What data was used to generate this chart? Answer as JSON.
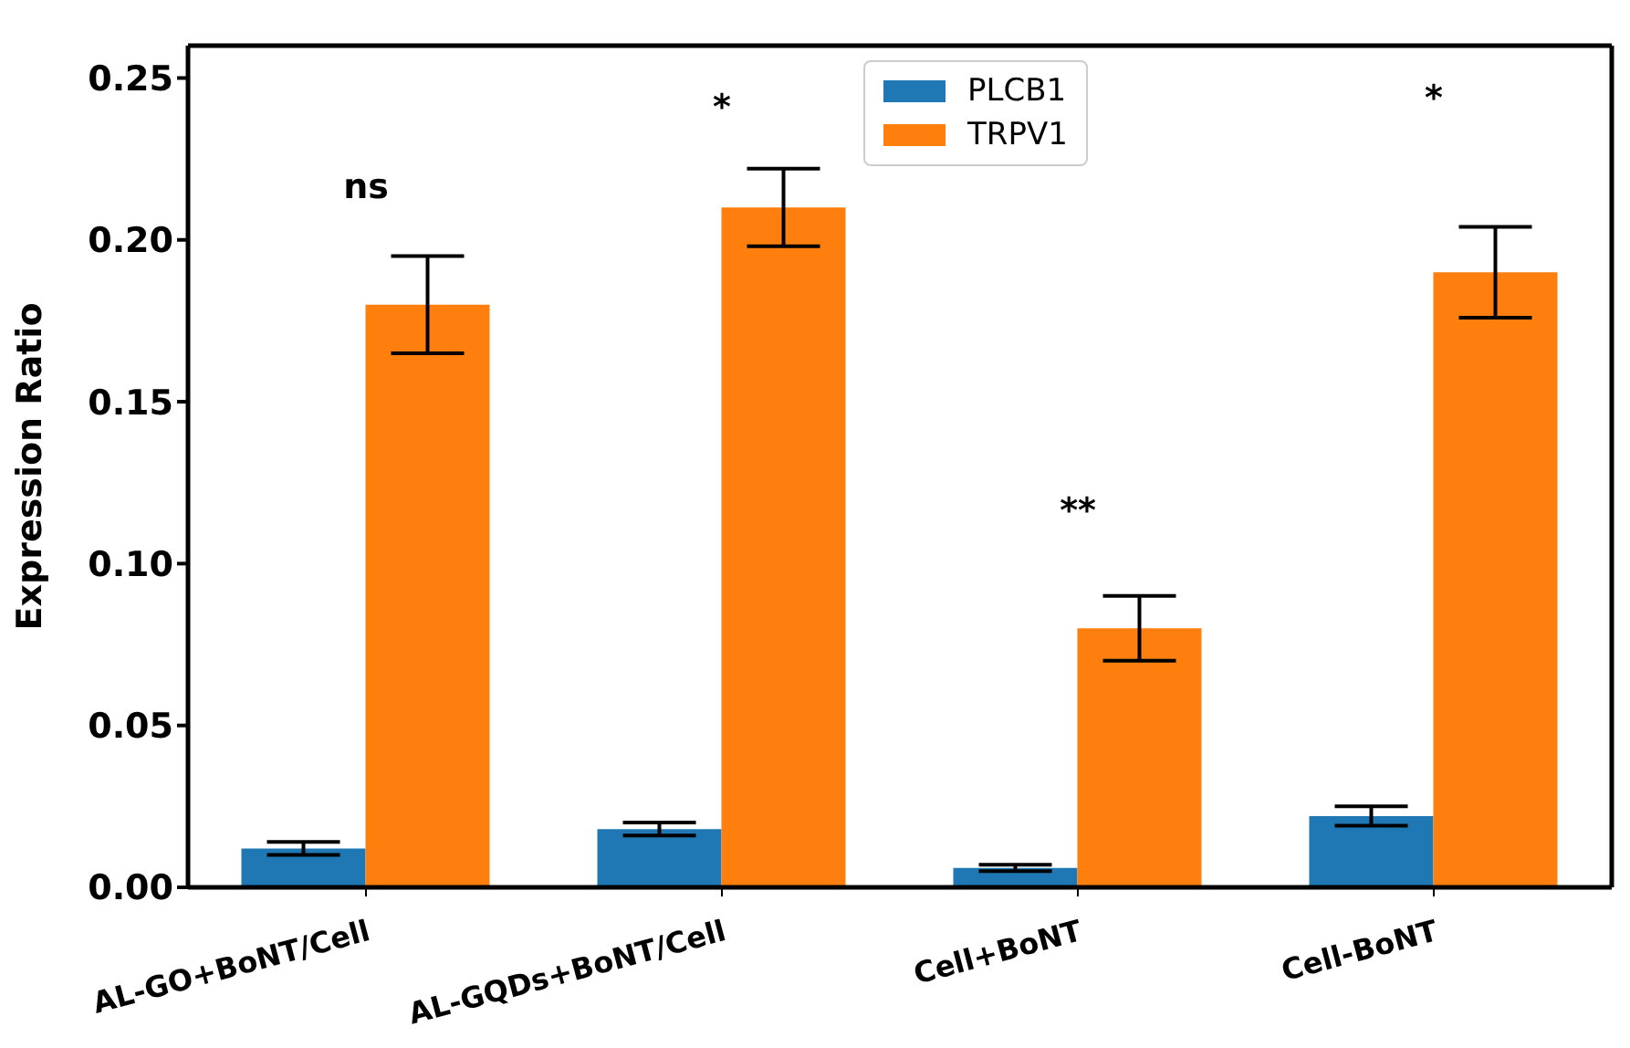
{
  "chart_data": {
    "type": "bar",
    "ylabel": "Expression Ratio",
    "categories": [
      "AL-GO+BoNT/Cell",
      "AL-GQDs+BoNT/Cell",
      "Cell+BoNT",
      "Cell-BoNT"
    ],
    "series": [
      {
        "name": "PLCB1",
        "color": "#1f77b4",
        "values": [
          0.012,
          0.018,
          0.006,
          0.022
        ],
        "errors": [
          0.002,
          0.002,
          0.001,
          0.003
        ]
      },
      {
        "name": "TRPV1",
        "color": "#ff7f0e",
        "values": [
          0.18,
          0.21,
          0.08,
          0.19
        ],
        "errors": [
          0.015,
          0.012,
          0.01,
          0.014
        ]
      }
    ],
    "ylim": [
      0,
      0.26
    ],
    "yticks": [
      {
        "value": 0,
        "label": "0.00"
      },
      0.05,
      {
        "value": 0.1,
        "label": "0.10"
      },
      0.15,
      {
        "value": 0.2,
        "label": "0.20"
      },
      0.25
    ],
    "annotations": [
      "ns",
      "*",
      "**",
      "*"
    ],
    "legend": "top",
    "grid": false
  }
}
